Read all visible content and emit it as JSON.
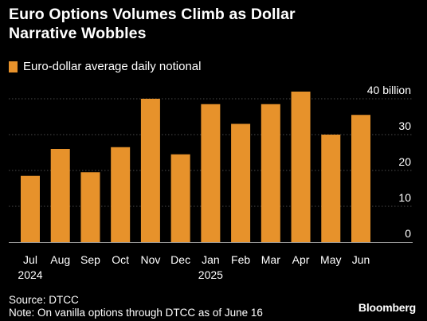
{
  "header": {
    "title_line1": "Euro Options Volumes Climb as Dollar",
    "title_line2": "Narrative Wobbles"
  },
  "legend": {
    "label": "Euro-dollar average daily notional"
  },
  "footer": {
    "source": "Source: DTCC",
    "note": "Note: On vanilla options through DTCC as of June 16",
    "brand": "Bloomberg"
  },
  "colors": {
    "background": "#000000",
    "bar": "#E7922B",
    "grid": "#4a4a4a",
    "text": "#ffffff"
  },
  "chart_data": {
    "type": "bar",
    "categories": [
      "Jul",
      "Aug",
      "Sep",
      "Oct",
      "Nov",
      "Dec",
      "Jan",
      "Feb",
      "Mar",
      "Apr",
      "May",
      "Jun"
    ],
    "year_labels": [
      "2024",
      "",
      "",
      "",
      "",
      "",
      "2025",
      "",
      "",
      "",
      "",
      ""
    ],
    "series": [
      {
        "values": [
          18.5,
          26,
          19.5,
          26.5,
          40,
          24.5,
          38.5,
          33,
          38.5,
          42,
          30,
          35.5
        ]
      }
    ],
    "yticks": [
      "0",
      "10",
      "20",
      "30",
      "40 billion"
    ],
    "ytick_values": [
      0,
      10,
      20,
      30,
      40
    ],
    "ylim": [
      0,
      40
    ],
    "grid": true,
    "legend_position": "top-left",
    "y_axis_position": "right"
  }
}
